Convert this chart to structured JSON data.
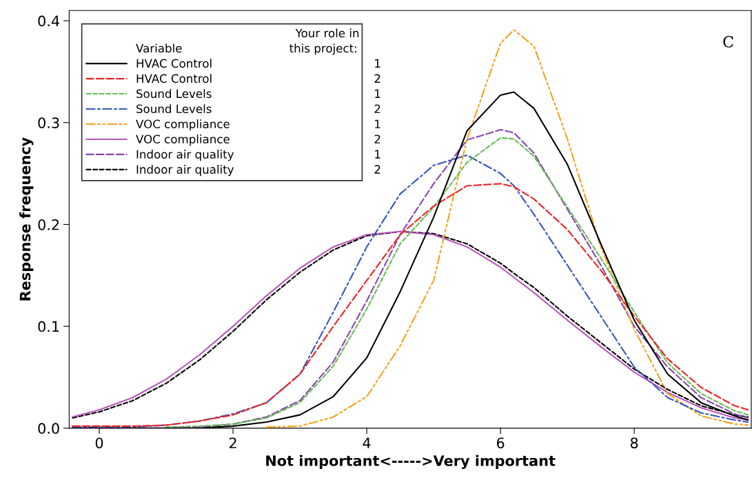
{
  "chart_data": {
    "type": "line",
    "xlabel": "Not important<----->Very important",
    "ylabel": "Response frequency",
    "legend_title": "Variable",
    "annotations": [
      "Your role in\nthis project:",
      "1",
      "2",
      "1",
      "2",
      "1",
      "2",
      "1",
      "2",
      "C"
    ],
    "x": [
      -0.4,
      0,
      0.5,
      1,
      1.5,
      2,
      2.5,
      3,
      3.5,
      4,
      4.5,
      5,
      5.5,
      6,
      6.2,
      6.5,
      7,
      7.5,
      8,
      8.5,
      9,
      9.5,
      9.7
    ],
    "series": [
      {
        "name": "HVAC Control",
        "color": "#000000",
        "line_style": "solid",
        "values": [
          0,
          0,
          0,
          0,
          0,
          0.002,
          0.006,
          0.013,
          0.031,
          0.069,
          0.134,
          0.207,
          0.292,
          0.327,
          0.33,
          0.314,
          0.259,
          0.181,
          0.106,
          0.053,
          0.025,
          0.012,
          0.008
        ]
      },
      {
        "name": "HVAC Control",
        "color": "#ee2222",
        "line_style": "dashed",
        "values": [
          0.002,
          0.002,
          0.002,
          0.003,
          0.007,
          0.013,
          0.025,
          0.053,
          0.1,
          0.145,
          0.19,
          0.218,
          0.238,
          0.24,
          0.237,
          0.225,
          0.195,
          0.155,
          0.11,
          0.068,
          0.04,
          0.022,
          0.018
        ]
      },
      {
        "name": "Sound Levels",
        "color": "#66bb55",
        "line_style": "dotted",
        "values": [
          null,
          null,
          null,
          0.001,
          0.002,
          0.004,
          0.01,
          0.025,
          0.061,
          0.117,
          0.181,
          0.217,
          0.261,
          0.285,
          0.284,
          0.267,
          0.217,
          0.167,
          0.114,
          0.064,
          0.034,
          0.017,
          0.013
        ]
      },
      {
        "name": "Sound Levels",
        "color": "#3355bb",
        "line_style": "dashdot",
        "values": [
          0.001,
          0.001,
          0.001,
          0.003,
          0.007,
          0.014,
          0.025,
          0.053,
          0.114,
          0.178,
          0.23,
          0.258,
          0.268,
          0.25,
          0.238,
          0.21,
          0.16,
          0.11,
          0.06,
          0.03,
          0.015,
          0.008,
          0.006
        ]
      },
      {
        "name": "VOC compliance",
        "color": "#f7a11a",
        "line_style": "dashdotdot",
        "values": [
          null,
          null,
          null,
          null,
          null,
          null,
          0.001,
          0.002,
          0.011,
          0.031,
          0.081,
          0.145,
          0.284,
          0.378,
          0.391,
          0.375,
          0.284,
          0.178,
          0.097,
          0.034,
          0.012,
          0.004,
          0.003
        ]
      },
      {
        "name": "VOC compliance",
        "color": "#bb55bb",
        "line_style": "solid",
        "values": [
          0.011,
          0.018,
          0.03,
          0.048,
          0.072,
          0.1,
          0.13,
          0.157,
          0.178,
          0.19,
          0.193,
          0.19,
          0.178,
          0.158,
          0.148,
          0.133,
          0.106,
          0.08,
          0.055,
          0.035,
          0.02,
          0.01,
          0.008
        ]
      },
      {
        "name": "Indoor air quality",
        "color": "#8844aa",
        "line_style": "dashed",
        "values": [
          0,
          0,
          0,
          0,
          0.001,
          0.004,
          0.011,
          0.027,
          0.065,
          0.125,
          0.19,
          0.24,
          0.283,
          0.293,
          0.29,
          0.27,
          0.215,
          0.16,
          0.1,
          0.06,
          0.03,
          0.014,
          0.01
        ]
      },
      {
        "name": "Indoor air quality",
        "color": "#000000",
        "line_style": "dotted",
        "values": [
          0.01,
          0.016,
          0.027,
          0.044,
          0.067,
          0.095,
          0.126,
          0.153,
          0.175,
          0.189,
          0.193,
          0.191,
          0.181,
          0.162,
          0.152,
          0.138,
          0.11,
          0.084,
          0.058,
          0.038,
          0.022,
          0.013,
          0.011
        ]
      }
    ],
    "xlim": [
      -0.45,
      9.75
    ],
    "ylim": [
      0,
      0.41
    ],
    "xticks": [
      0,
      2,
      4,
      6,
      8
    ],
    "yticks": [
      {
        "value": 0,
        "label": "0.0"
      },
      0.1,
      0.2,
      0.3,
      0.4
    ],
    "grid": false,
    "legend": "top left"
  }
}
